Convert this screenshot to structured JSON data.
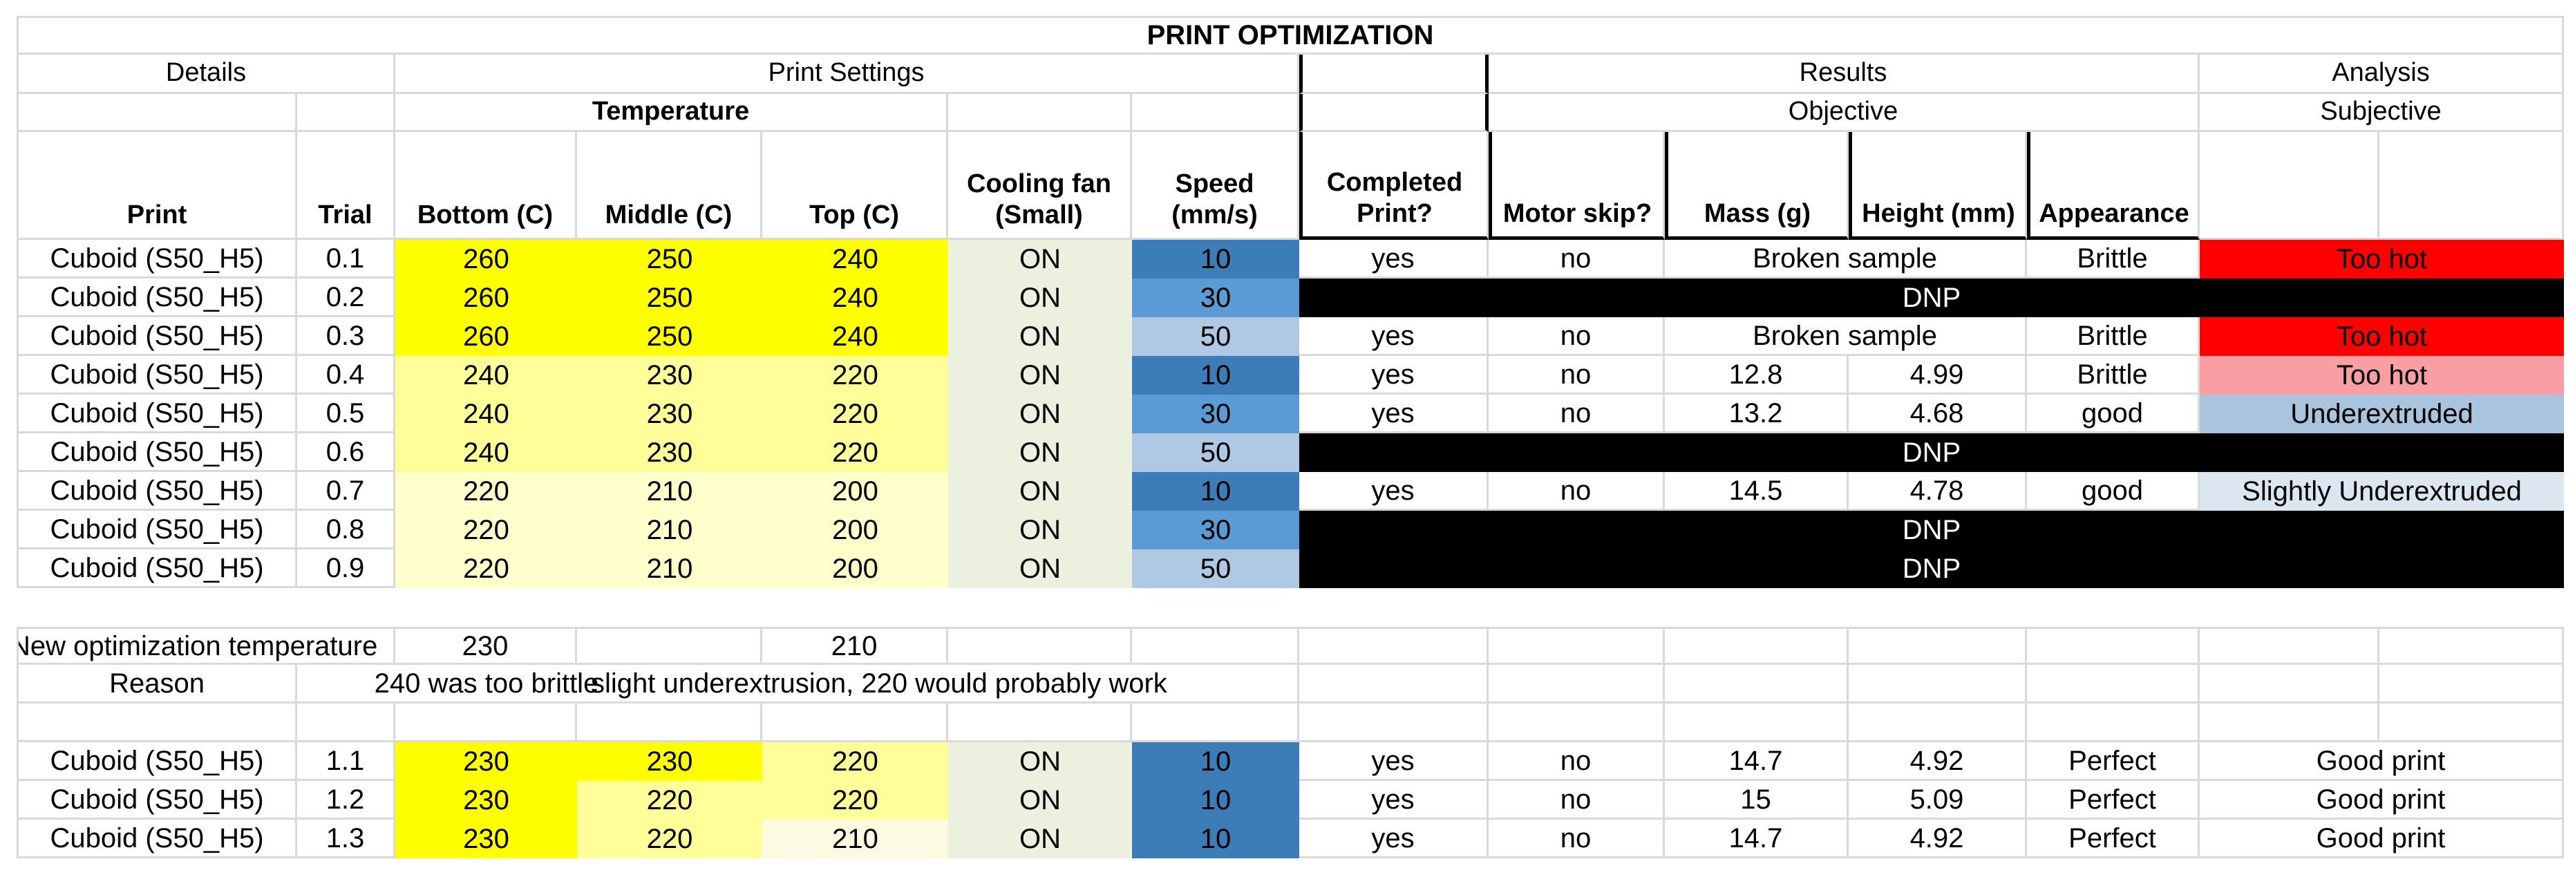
{
  "title": "PRINT OPTIMIZATION",
  "sections": {
    "details": "Details",
    "print_settings": "Print Settings",
    "results": "Results",
    "analysis": "Analysis",
    "temperature": "Temperature",
    "objective": "Objective",
    "subjective": "Subjective"
  },
  "columns": {
    "print": "Print",
    "trial": "Trial",
    "bottom": "Bottom (C)",
    "middle": "Middle (C)",
    "top": "Top (C)",
    "cooling_fan": "Cooling fan\n(Small)",
    "speed": "Speed\n(mm/s)",
    "completed": "Completed\nPrint?",
    "motor_skip": "Motor skip?",
    "mass": "Mass (g)",
    "height": "Height (mm)",
    "appearance": "Appearance"
  },
  "colors": {
    "grid": "#D9D9D9",
    "temp_hot": "#FFFF00",
    "temp_warm": "#FFFF99",
    "temp_mild": "#FFFFCC",
    "temp_cool": "#FBFBE2",
    "fan_on": "#EBF1DE",
    "speed_10": "#3C7DB8",
    "speed_30": "#5B9BD5",
    "speed_50": "#AFC9E4",
    "too_hot_red": "#FE0000",
    "too_hot_pink": "#F99EA3",
    "underextruded_blue": "#A9C4DD",
    "slightly_underextruded_blue": "#DCE6F1",
    "dnp_black": "#000000"
  },
  "trials_block1": [
    {
      "print": "Cuboid (S50_H5)",
      "trial": "0.1",
      "temps": [
        "260",
        "250",
        "240"
      ],
      "temp_levels": [
        "hot",
        "hot",
        "hot"
      ],
      "cooling": "ON",
      "speed": "10",
      "completed": "yes",
      "motor_skip": "no",
      "mass_height": "Broken sample",
      "appearance": "Brittle",
      "analysis": "Too hot",
      "analysis_style": "red"
    },
    {
      "print": "Cuboid (S50_H5)",
      "trial": "0.2",
      "temps": [
        "260",
        "250",
        "240"
      ],
      "temp_levels": [
        "hot",
        "hot",
        "hot"
      ],
      "cooling": "ON",
      "speed": "30",
      "dnp": "DNP"
    },
    {
      "print": "Cuboid (S50_H5)",
      "trial": "0.3",
      "temps": [
        "260",
        "250",
        "240"
      ],
      "temp_levels": [
        "hot",
        "hot",
        "hot"
      ],
      "cooling": "ON",
      "speed": "50",
      "completed": "yes",
      "motor_skip": "no",
      "mass_height": "Broken sample",
      "appearance": "Brittle",
      "analysis": "Too hot",
      "analysis_style": "red"
    },
    {
      "print": "Cuboid (S50_H5)",
      "trial": "0.4",
      "temps": [
        "240",
        "230",
        "220"
      ],
      "temp_levels": [
        "warm",
        "warm",
        "warm"
      ],
      "cooling": "ON",
      "speed": "10",
      "completed": "yes",
      "motor_skip": "no",
      "mass": "12.8",
      "height": "4.99",
      "appearance": "Brittle",
      "analysis": "Too hot",
      "analysis_style": "pink"
    },
    {
      "print": "Cuboid (S50_H5)",
      "trial": "0.5",
      "temps": [
        "240",
        "230",
        "220"
      ],
      "temp_levels": [
        "warm",
        "warm",
        "warm"
      ],
      "cooling": "ON",
      "speed": "30",
      "completed": "yes",
      "motor_skip": "no",
      "mass": "13.2",
      "height": "4.68",
      "appearance": "good",
      "analysis": "Underextruded",
      "analysis_style": "blue"
    },
    {
      "print": "Cuboid (S50_H5)",
      "trial": "0.6",
      "temps": [
        "240",
        "230",
        "220"
      ],
      "temp_levels": [
        "warm",
        "warm",
        "warm"
      ],
      "cooling": "ON",
      "speed": "50",
      "dnp": "DNP"
    },
    {
      "print": "Cuboid (S50_H5)",
      "trial": "0.7",
      "temps": [
        "220",
        "210",
        "200"
      ],
      "temp_levels": [
        "mild",
        "mild",
        "mild"
      ],
      "cooling": "ON",
      "speed": "10",
      "completed": "yes",
      "motor_skip": "no",
      "mass": "14.5",
      "height": "4.78",
      "appearance": "good",
      "analysis": "Slightly Underextruded",
      "analysis_style": "lightblue"
    },
    {
      "print": "Cuboid (S50_H5)",
      "trial": "0.8",
      "temps": [
        "220",
        "210",
        "200"
      ],
      "temp_levels": [
        "mild",
        "mild",
        "mild"
      ],
      "cooling": "ON",
      "speed": "30",
      "dnp": "DNP"
    },
    {
      "print": "Cuboid (S50_H5)",
      "trial": "0.9",
      "temps": [
        "220",
        "210",
        "200"
      ],
      "temp_levels": [
        "mild",
        "mild",
        "mild"
      ],
      "cooling": "ON",
      "speed": "50",
      "dnp": "DNP"
    }
  ],
  "notes": {
    "new_temp_label": "New optimization temperature",
    "new_temp_bottom": "230",
    "new_temp_top": "210",
    "reason_label": "Reason",
    "reason_part1": "240 was too brittle",
    "reason_part2": "slight underextrusion, 220 would probably work"
  },
  "trials_block2": [
    {
      "print": "Cuboid (S50_H5)",
      "trial": "1.1",
      "temps": [
        "230",
        "230",
        "220"
      ],
      "temp_levels": [
        "hot",
        "hot",
        "warm"
      ],
      "cooling": "ON",
      "speed": "10",
      "completed": "yes",
      "motor_skip": "no",
      "mass": "14.7",
      "height": "4.92",
      "appearance": "Perfect",
      "analysis": "Good print",
      "analysis_style": "white"
    },
    {
      "print": "Cuboid (S50_H5)",
      "trial": "1.2",
      "temps": [
        "230",
        "220",
        "220"
      ],
      "temp_levels": [
        "hot",
        "warm",
        "warm"
      ],
      "cooling": "ON",
      "speed": "10",
      "completed": "yes",
      "motor_skip": "no",
      "mass": "15",
      "height": "5.09",
      "appearance": "Perfect",
      "analysis": "Good print",
      "analysis_style": "white"
    },
    {
      "print": "Cuboid (S50_H5)",
      "trial": "1.3",
      "temps": [
        "230",
        "220",
        "210"
      ],
      "temp_levels": [
        "hot",
        "warm",
        "cool"
      ],
      "cooling": "ON",
      "speed": "10",
      "completed": "yes",
      "motor_skip": "no",
      "mass": "14.7",
      "height": "4.92",
      "appearance": "Perfect",
      "analysis": "Good print",
      "analysis_style": "white"
    }
  ]
}
